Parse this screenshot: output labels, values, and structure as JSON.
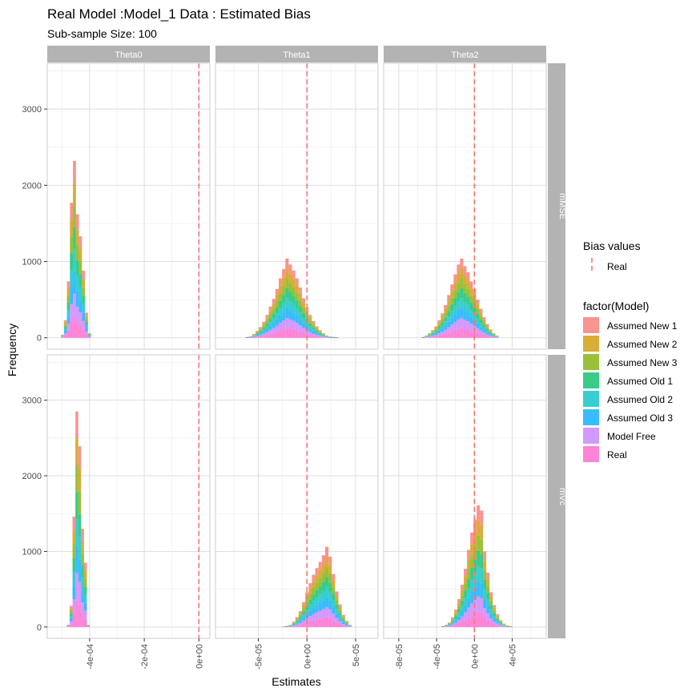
{
  "chart_data": {
    "type": "histogram-facet",
    "title": "Real Model :Model_1 Data : Estimated Bias",
    "subtitle": "Sub-sample Size: 100",
    "xlabel": "Estimates",
    "ylabel": "Frequency",
    "y_range": [
      -150,
      3600
    ],
    "y_ticks": [
      0,
      1000,
      2000,
      3000
    ],
    "col_facets": [
      "Theta0",
      "Theta1",
      "Theta2"
    ],
    "row_facets": [
      "mMSE",
      "mVc"
    ],
    "columns": [
      {
        "x_range": [
          -0.000555,
          4e-05
        ],
        "ticks": [
          -0.0004,
          -0.0002,
          0
        ],
        "tick_labels": [
          "-4e-04",
          "-2e-04",
          "0e+00"
        ]
      },
      {
        "x_range": [
          -9.4e-05,
          7.3e-05
        ],
        "ticks": [
          -5e-05,
          0,
          5e-05
        ],
        "tick_labels": [
          "-5e-05",
          "0e+00",
          "5e-05"
        ]
      },
      {
        "x_range": [
          -9.6e-05,
          7.6e-05
        ],
        "ticks": [
          -8e-05,
          -4e-05,
          0,
          4e-05
        ],
        "tick_labels": [
          "-8e-05",
          "-4e-05",
          "0e+00",
          "4e-05"
        ]
      }
    ],
    "legend_bias": {
      "title": "Bias values",
      "entries": [
        "Real"
      ],
      "color": "#F8766D"
    },
    "legend_model": {
      "title": "factor(Model)",
      "entries": [
        "Assumed New 1",
        "Assumed New 2",
        "Assumed New 3",
        "Assumed Old 1",
        "Assumed Old 2",
        "Assumed Old 3",
        "Model Free",
        "Real"
      ],
      "colors": [
        "#F8766D",
        "#CD9600",
        "#7CAE00",
        "#00BE67",
        "#00BFC4",
        "#00A9FF",
        "#C77CFF",
        "#FF61CC"
      ]
    },
    "bias_line_x": 0,
    "panels": [
      {
        "row": "mMSE",
        "col": "Theta0",
        "bin_start": -0.000505,
        "bin_width": 1.1e-05,
        "totals": [
          40,
          230,
          740,
          1770,
          2320,
          1620,
          1330,
          880,
          330,
          60
        ]
      },
      {
        "row": "mMSE",
        "col": "Theta1",
        "bin_start": -6.3e-05,
        "bin_width": 3.4e-06,
        "totals": [
          10,
          20,
          50,
          90,
          140,
          210,
          300,
          410,
          510,
          640,
          780,
          900,
          1040,
          960,
          880,
          780,
          660,
          520,
          400,
          300,
          220,
          150,
          100,
          60,
          30,
          15,
          10,
          5
        ]
      },
      {
        "row": "mMSE",
        "col": "Theta2",
        "bin_start": -5.6e-05,
        "bin_width": 3.4e-06,
        "totals": [
          10,
          30,
          60,
          100,
          150,
          230,
          320,
          430,
          560,
          700,
          830,
          960,
          1040,
          940,
          860,
          740,
          640,
          500,
          380,
          270,
          180,
          110,
          60,
          30
        ]
      },
      {
        "row": "mVc",
        "col": "Theta0",
        "bin_start": -0.0004835,
        "bin_width": 1.05e-05,
        "totals": [
          30,
          280,
          1460,
          2850,
          2390,
          1300,
          850,
          30
        ]
      },
      {
        "row": "mVc",
        "col": "Theta1",
        "bin_start": -2.55e-05,
        "bin_width": 3.4e-06,
        "totals": [
          5,
          15,
          30,
          70,
          130,
          210,
          330,
          460,
          580,
          690,
          780,
          860,
          950,
          1060,
          930,
          700,
          470,
          300,
          160,
          80,
          30
        ]
      },
      {
        "row": "mVc",
        "col": "Theta2",
        "bin_start": -3.5e-05,
        "bin_width": 3.4e-06,
        "totals": [
          10,
          30,
          60,
          130,
          230,
          370,
          560,
          770,
          1020,
          1250,
          1420,
          1610,
          1540,
          1000,
          720,
          460,
          290,
          170,
          90,
          45,
          20,
          10
        ]
      }
    ]
  }
}
